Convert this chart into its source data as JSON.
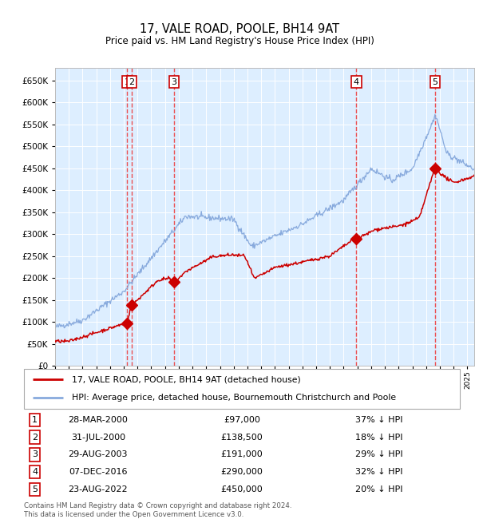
{
  "title": "17, VALE ROAD, POOLE, BH14 9AT",
  "subtitle": "Price paid vs. HM Land Registry's House Price Index (HPI)",
  "xlim": [
    1995.0,
    2025.5
  ],
  "ylim": [
    0,
    680000
  ],
  "yticks": [
    0,
    50000,
    100000,
    150000,
    200000,
    250000,
    300000,
    350000,
    400000,
    450000,
    500000,
    550000,
    600000,
    650000
  ],
  "background_color": "#ddeeff",
  "legend_entries": [
    "17, VALE ROAD, POOLE, BH14 9AT (detached house)",
    "HPI: Average price, detached house, Bournemouth Christchurch and Poole"
  ],
  "table_rows": [
    {
      "num": 1,
      "date": "28-MAR-2000",
      "price": "£97,000",
      "pct": "37% ↓ HPI"
    },
    {
      "num": 2,
      "date": "31-JUL-2000",
      "price": "£138,500",
      "pct": "18% ↓ HPI"
    },
    {
      "num": 3,
      "date": "29-AUG-2003",
      "price": "£191,000",
      "pct": "29% ↓ HPI"
    },
    {
      "num": 4,
      "date": "07-DEC-2016",
      "price": "£290,000",
      "pct": "32% ↓ HPI"
    },
    {
      "num": 5,
      "date": "23-AUG-2022",
      "price": "£450,000",
      "pct": "20% ↓ HPI"
    }
  ],
  "footer": "Contains HM Land Registry data © Crown copyright and database right 2024.\nThis data is licensed under the Open Government Licence v3.0.",
  "sales": [
    {
      "year": 2000.24,
      "price": 97000,
      "label": "1"
    },
    {
      "year": 2000.58,
      "price": 138500,
      "label": "2"
    },
    {
      "year": 2003.66,
      "price": 191000,
      "label": "3"
    },
    {
      "year": 2016.93,
      "price": 290000,
      "label": "4"
    },
    {
      "year": 2022.65,
      "price": 450000,
      "label": "5"
    }
  ],
  "red_line_color": "#cc0000",
  "blue_line_color": "#88aadd",
  "marker_color": "#cc0000",
  "vline_color": "#ee3333"
}
